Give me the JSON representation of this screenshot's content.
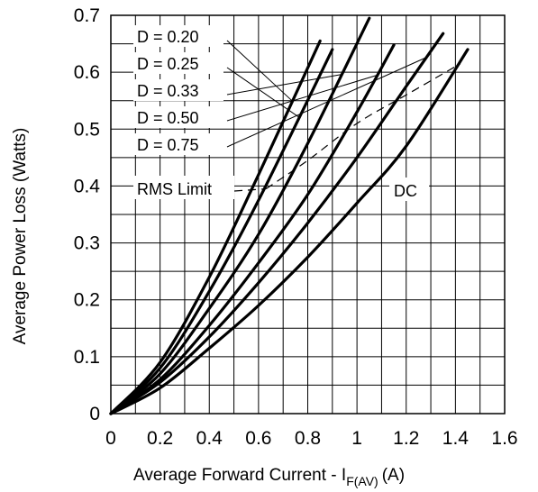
{
  "chart_data": {
    "type": "line",
    "title": "",
    "xlabel": "Average Forward Current - I",
    "xlabel_sub": "F(AV)",
    "xlabel_unit": "(A)",
    "ylabel": "Average Power Loss (Watts)",
    "xlim": [
      0,
      1.6
    ],
    "ylim": [
      0,
      0.7
    ],
    "x_ticks": [
      "0",
      "0.2",
      "0.4",
      "0.6",
      "0.8",
      "1",
      "1.2",
      "1.4",
      "1.6"
    ],
    "y_ticks": [
      "0",
      "0.1",
      "0.2",
      "0.3",
      "0.4",
      "0.5",
      "0.6",
      "0.7"
    ],
    "grid": true,
    "series": [
      {
        "name": "D = 0.20",
        "x": [
          0,
          0.2,
          0.4,
          0.6,
          0.85
        ],
        "y": [
          0,
          0.09,
          0.24,
          0.42,
          0.655
        ]
      },
      {
        "name": "D = 0.25",
        "x": [
          0,
          0.2,
          0.4,
          0.6,
          0.9
        ],
        "y": [
          0,
          0.08,
          0.215,
          0.375,
          0.64
        ]
      },
      {
        "name": "D = 0.33",
        "x": [
          0,
          0.2,
          0.4,
          0.6,
          0.8,
          1.05
        ],
        "y": [
          0,
          0.07,
          0.185,
          0.315,
          0.475,
          0.695
        ]
      },
      {
        "name": "D = 0.50",
        "x": [
          0,
          0.2,
          0.4,
          0.6,
          0.8,
          1.0,
          1.15
        ],
        "y": [
          0,
          0.06,
          0.155,
          0.265,
          0.385,
          0.53,
          0.648
        ]
      },
      {
        "name": "D = 0.75",
        "x": [
          0,
          0.2,
          0.4,
          0.6,
          0.8,
          1.0,
          1.2,
          1.35
        ],
        "y": [
          0,
          0.055,
          0.135,
          0.23,
          0.335,
          0.45,
          0.575,
          0.668
        ]
      },
      {
        "name": "DC",
        "x": [
          0,
          0.2,
          0.4,
          0.6,
          0.8,
          1.0,
          1.2,
          1.45
        ],
        "y": [
          0,
          0.045,
          0.115,
          0.19,
          0.275,
          0.37,
          0.47,
          0.64
        ]
      }
    ],
    "rms_limit": {
      "label": "RMS Limit",
      "x": [
        0.63,
        0.8,
        1.0,
        1.2,
        1.42
      ],
      "y": [
        0.395,
        0.445,
        0.51,
        0.56,
        0.615
      ]
    },
    "annotations": [
      "D = 0.20",
      "D = 0.25",
      "D = 0.33",
      "D = 0.50",
      "D = 0.75",
      "RMS Limit",
      "DC"
    ]
  }
}
